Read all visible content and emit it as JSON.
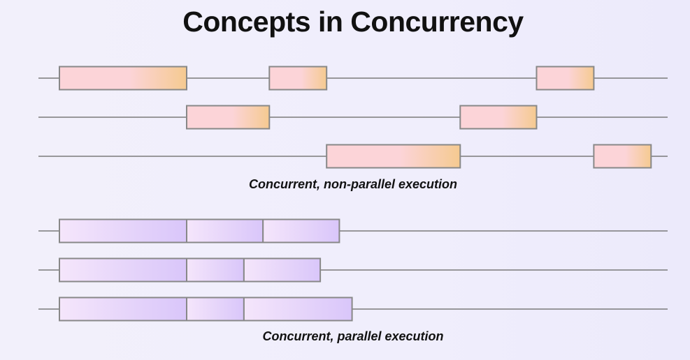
{
  "title": "Concepts in Concurrency",
  "sections": [
    {
      "caption": "Concurrent, non-parallel execution",
      "colors": {
        "start": "#fcd4d8",
        "end": "#f5ca90",
        "stroke": "#888888"
      },
      "rows": [
        {
          "tasks": [
            {
              "start": 0.0,
              "end": 2.0
            },
            {
              "start": 3.3,
              "end": 4.2
            },
            {
              "start": 7.5,
              "end": 8.4
            }
          ]
        },
        {
          "tasks": [
            {
              "start": 2.0,
              "end": 3.3
            },
            {
              "start": 6.3,
              "end": 7.5
            }
          ]
        },
        {
          "tasks": [
            {
              "start": 4.2,
              "end": 6.3
            },
            {
              "start": 8.4,
              "end": 9.3
            }
          ]
        }
      ]
    },
    {
      "caption": "Concurrent, parallel execution",
      "colors": {
        "start": "#f5e6fb",
        "end": "#d9c6fa",
        "stroke": "#888888"
      },
      "rows": [
        {
          "tasks": [
            {
              "start": 0.0,
              "end": 2.0
            },
            {
              "start": 2.0,
              "end": 3.2
            },
            {
              "start": 3.2,
              "end": 4.4
            }
          ]
        },
        {
          "tasks": [
            {
              "start": 0.0,
              "end": 2.0
            },
            {
              "start": 2.0,
              "end": 2.9
            },
            {
              "start": 2.9,
              "end": 4.1
            }
          ]
        },
        {
          "tasks": [
            {
              "start": 0.0,
              "end": 2.0
            },
            {
              "start": 2.0,
              "end": 2.9
            },
            {
              "start": 2.9,
              "end": 4.6
            }
          ]
        }
      ]
    }
  ]
}
